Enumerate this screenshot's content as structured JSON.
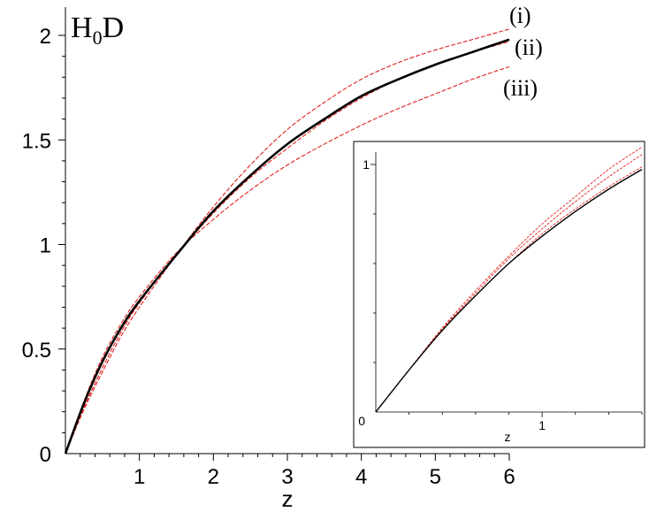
{
  "chart_data": [
    {
      "type": "line",
      "title": "",
      "ylabel_main": "H",
      "ylabel_sub": "0",
      "ylabel_suffix": "D",
      "xlabel": "z",
      "xlim": [
        0,
        6
      ],
      "ylim": [
        0,
        2
      ],
      "x_ticks": [
        1,
        2,
        3,
        4,
        5,
        6
      ],
      "x_tick_labels": [
        "1",
        "2",
        "3",
        "4",
        "5",
        "6"
      ],
      "y_ticks": [
        0,
        0.5,
        1,
        1.5,
        2
      ],
      "y_tick_labels": [
        "0",
        "0.5",
        "1",
        "1.5",
        "2"
      ],
      "curve_labels": [
        "(i)",
        "(ii)",
        "(iii)"
      ],
      "x": [
        0,
        0.25,
        0.5,
        0.75,
        1,
        1.5,
        2,
        2.5,
        3,
        3.5,
        4,
        4.5,
        5,
        5.5,
        6
      ],
      "series": [
        {
          "color": "#000000",
          "style": "solid",
          "values": [
            0,
            0.24,
            0.44,
            0.6,
            0.73,
            0.95,
            1.16,
            1.33,
            1.48,
            1.6,
            1.71,
            1.79,
            1.86,
            1.92,
            1.98
          ]
        },
        {
          "color": "#e0201c",
          "style": "dashed",
          "values": [
            0,
            0.21,
            0.39,
            0.56,
            0.7,
            0.95,
            1.18,
            1.38,
            1.55,
            1.68,
            1.79,
            1.87,
            1.93,
            1.98,
            2.03
          ]
        },
        {
          "color": "#e0201c",
          "style": "dashed",
          "values": [
            0,
            0.22,
            0.41,
            0.58,
            0.72,
            0.95,
            1.15,
            1.32,
            1.46,
            1.59,
            1.7,
            1.79,
            1.86,
            1.92,
            1.97
          ]
        },
        {
          "color": "#e0201c",
          "style": "dashed",
          "values": [
            0,
            0.25,
            0.46,
            0.62,
            0.75,
            0.96,
            1.12,
            1.26,
            1.38,
            1.48,
            1.57,
            1.65,
            1.72,
            1.79,
            1.85
          ]
        }
      ]
    },
    {
      "type": "line",
      "title": "",
      "xlabel": "z",
      "xlim": [
        0,
        1.6
      ],
      "ylim": [
        0,
        1.05
      ],
      "x_tick_labels": [
        "1"
      ],
      "y_tick_labels": [
        "0",
        "1"
      ],
      "x": [
        0,
        0.2,
        0.4,
        0.6,
        0.8,
        1.0,
        1.2,
        1.4,
        1.6
      ],
      "series": [
        {
          "color": "#000000",
          "style": "solid",
          "values": [
            0,
            0.17,
            0.33,
            0.47,
            0.6,
            0.71,
            0.81,
            0.9,
            0.98
          ]
        },
        {
          "color": "#e0201c",
          "style": "dashed",
          "values": [
            0,
            0.17,
            0.34,
            0.49,
            0.63,
            0.76,
            0.87,
            0.98,
            1.07
          ]
        },
        {
          "color": "#e0201c",
          "style": "dashed",
          "values": [
            0,
            0.17,
            0.335,
            0.48,
            0.62,
            0.74,
            0.85,
            0.95,
            1.04
          ]
        },
        {
          "color": "#e0201c",
          "style": "dashed",
          "values": [
            0,
            0.17,
            0.33,
            0.47,
            0.6,
            0.72,
            0.82,
            0.91,
            0.99
          ]
        }
      ]
    }
  ]
}
